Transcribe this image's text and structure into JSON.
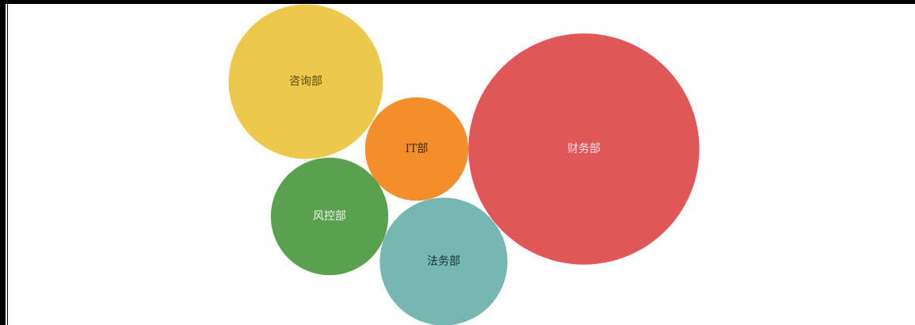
{
  "chart_data": {
    "type": "bubble",
    "title": "",
    "legend": "none",
    "grid": false,
    "series": [
      {
        "label": "咨询部",
        "value": 3.8,
        "color": "#ECC94B",
        "text_color": "#5a4a1a"
      },
      {
        "label": "IT部",
        "value": 1.7,
        "color": "#F28E2B",
        "text_color": "#3d2a12"
      },
      {
        "label": "财务部",
        "value": 8.5,
        "color": "#E15759",
        "text_color": "#ffe9e9"
      },
      {
        "label": "风控部",
        "value": 2.2,
        "color": "#59A14F",
        "text_color": "#eef7ea"
      },
      {
        "label": "法务部",
        "value": 2.6,
        "color": "#76B7B2",
        "text_color": "#16302e"
      }
    ]
  }
}
